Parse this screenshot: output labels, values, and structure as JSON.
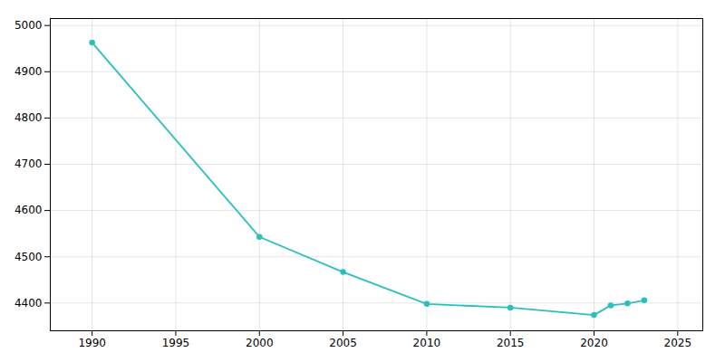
{
  "chart_data": {
    "type": "line",
    "x": [
      1990,
      2000,
      2005,
      2010,
      2015,
      2020,
      2021,
      2022,
      2023
    ],
    "values": [
      4963,
      4543,
      4467,
      4398,
      4390,
      4374,
      4395,
      4399,
      4406
    ],
    "color": "#2bbfbf",
    "marker": "circle",
    "xlim": [
      1987.5,
      2026.5
    ],
    "ylim": [
      4340,
      5015
    ],
    "xticks": [
      1990,
      1995,
      2000,
      2005,
      2010,
      2015,
      2020,
      2025
    ],
    "yticks": [
      4400,
      4500,
      4600,
      4700,
      4800,
      4900,
      5000
    ],
    "grid": true
  }
}
